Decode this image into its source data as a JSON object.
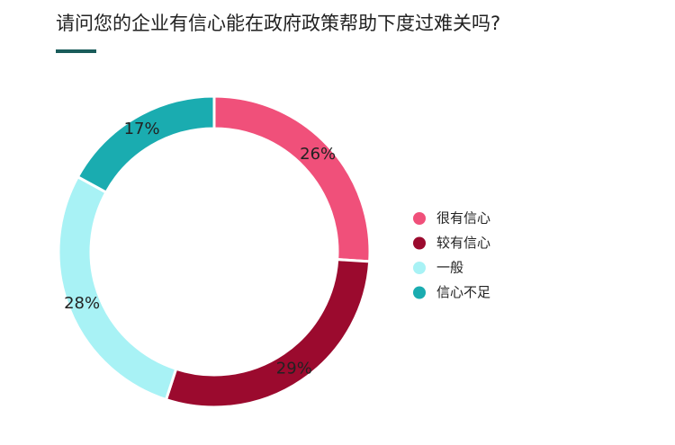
{
  "chart_data": {
    "type": "donut",
    "title": "请问您的企业有信心能在政府政策帮助下度过难关吗?",
    "categories": [
      "很有信心",
      "较有信心",
      "一般",
      "信心不足"
    ],
    "values": [
      26,
      29,
      28,
      17
    ],
    "value_labels": [
      "26%",
      "29%",
      "28%",
      "17%"
    ],
    "colors": [
      "#f0507a",
      "#9b0a2e",
      "#a8f2f5",
      "#1aacb0"
    ]
  }
}
